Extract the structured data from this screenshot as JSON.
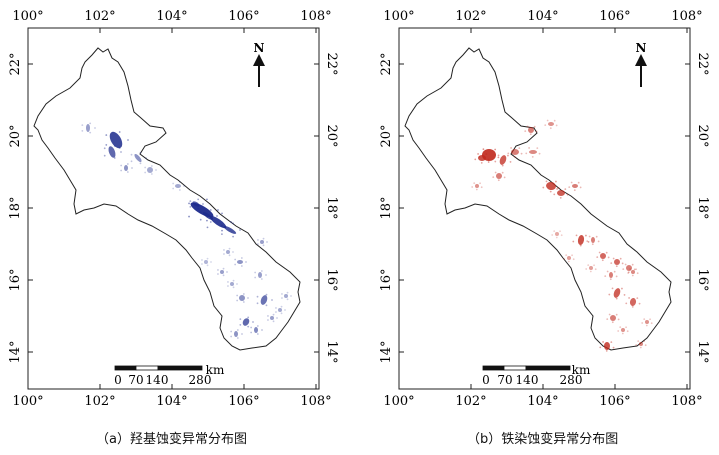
{
  "panels": [
    {
      "id": "a",
      "caption": "（a）羟基蚀变异常分布图",
      "anomaly_color": "#1c2a8c",
      "x_ticks": [
        "100°",
        "102°",
        "104°",
        "106°",
        "108°"
      ],
      "y_ticks": [
        "14°",
        "16°",
        "18°",
        "20°",
        "22°"
      ],
      "north_label": "N",
      "scale_ticks": [
        "0",
        "70",
        "140",
        "280"
      ],
      "scale_unit": "km"
    },
    {
      "id": "b",
      "caption": "（b）铁染蚀变异常分布图",
      "anomaly_color": "#c0281c",
      "x_ticks": [
        "100°",
        "102°",
        "104°",
        "106°",
        "108°"
      ],
      "y_ticks": [
        "14°",
        "16°",
        "18°",
        "20°",
        "22°"
      ],
      "north_label": "N",
      "scale_ticks": [
        "0",
        "70",
        "140",
        "280"
      ],
      "scale_unit": "km"
    }
  ]
}
